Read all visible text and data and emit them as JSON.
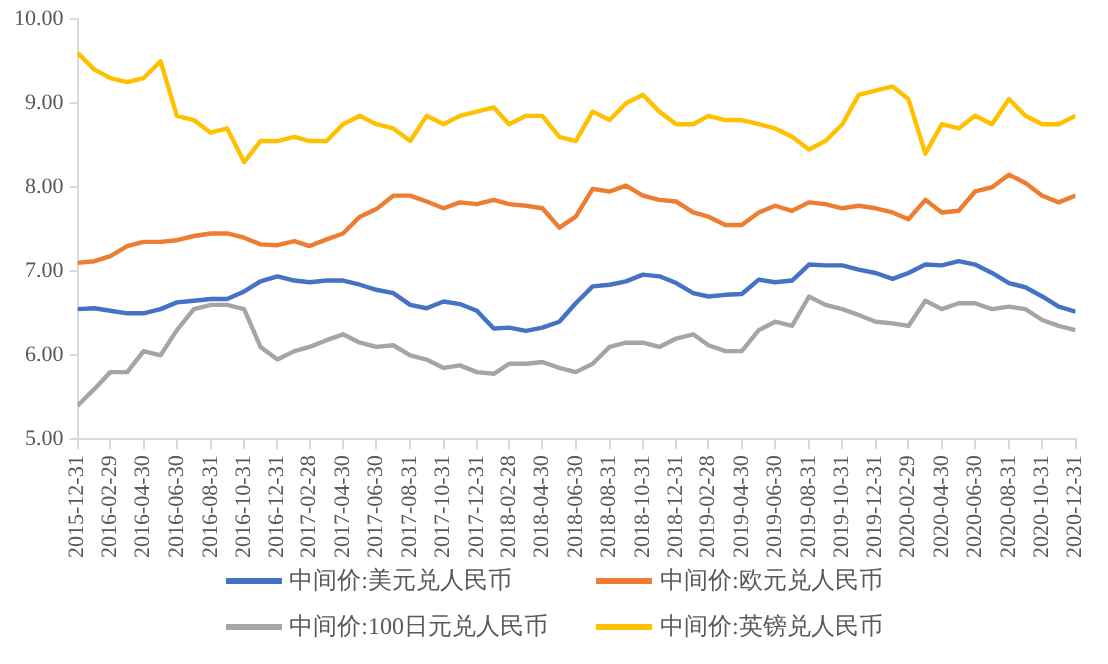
{
  "chart_data": {
    "type": "line",
    "x": [
      "2015-12-31",
      "2016-01-31",
      "2016-02-29",
      "2016-03-31",
      "2016-04-30",
      "2016-05-31",
      "2016-06-30",
      "2016-07-31",
      "2016-08-31",
      "2016-09-30",
      "2016-10-31",
      "2016-11-30",
      "2016-12-31",
      "2017-01-31",
      "2017-02-28",
      "2017-03-31",
      "2017-04-30",
      "2017-05-31",
      "2017-06-30",
      "2017-07-31",
      "2017-08-31",
      "2017-09-30",
      "2017-10-31",
      "2017-11-30",
      "2017-12-31",
      "2018-01-31",
      "2018-02-28",
      "2018-03-31",
      "2018-04-30",
      "2018-05-31",
      "2018-06-30",
      "2018-07-31",
      "2018-08-31",
      "2018-09-30",
      "2018-10-31",
      "2018-11-30",
      "2018-12-31",
      "2019-01-31",
      "2019-02-28",
      "2019-03-31",
      "2019-04-30",
      "2019-05-31",
      "2019-06-30",
      "2019-07-31",
      "2019-08-31",
      "2019-09-30",
      "2019-10-31",
      "2019-11-30",
      "2019-12-31",
      "2020-01-31",
      "2020-02-29",
      "2020-03-31",
      "2020-04-30",
      "2020-05-31",
      "2020-06-30",
      "2020-07-31",
      "2020-08-31",
      "2020-09-30",
      "2020-10-31",
      "2020-11-30",
      "2020-12-31"
    ],
    "series": [
      {
        "name": "中间价:美元兑人民币",
        "color": "#4472c4",
        "values": [
          6.55,
          6.56,
          6.53,
          6.5,
          6.5,
          6.55,
          6.63,
          6.65,
          6.67,
          6.67,
          6.76,
          6.88,
          6.94,
          6.89,
          6.87,
          6.89,
          6.89,
          6.84,
          6.78,
          6.74,
          6.6,
          6.56,
          6.64,
          6.61,
          6.53,
          6.32,
          6.33,
          6.29,
          6.33,
          6.4,
          6.62,
          6.82,
          6.84,
          6.88,
          6.96,
          6.94,
          6.86,
          6.74,
          6.7,
          6.72,
          6.73,
          6.9,
          6.87,
          6.89,
          7.08,
          7.07,
          7.07,
          7.02,
          6.98,
          6.91,
          6.98,
          7.08,
          7.07,
          7.12,
          7.08,
          6.98,
          6.86,
          6.81,
          6.7,
          6.58,
          6.52
        ]
      },
      {
        "name": "中间价:欧元兑人民币",
        "color": "#ed7d31",
        "values": [
          7.1,
          7.12,
          7.18,
          7.3,
          7.35,
          7.35,
          7.37,
          7.42,
          7.45,
          7.45,
          7.4,
          7.32,
          7.31,
          7.36,
          7.3,
          7.38,
          7.45,
          7.65,
          7.74,
          7.9,
          7.9,
          7.83,
          7.75,
          7.82,
          7.8,
          7.85,
          7.8,
          7.78,
          7.75,
          7.52,
          7.65,
          7.98,
          7.95,
          8.02,
          7.9,
          7.85,
          7.83,
          7.7,
          7.65,
          7.55,
          7.55,
          7.7,
          7.78,
          7.72,
          7.82,
          7.8,
          7.75,
          7.78,
          7.75,
          7.7,
          7.62,
          7.85,
          7.7,
          7.72,
          7.95,
          8.0,
          8.15,
          8.05,
          7.9,
          7.82,
          7.9
        ]
      },
      {
        "name": "中间价:100日元兑人民币",
        "color": "#a5a5a5",
        "values": [
          5.4,
          5.6,
          5.8,
          5.8,
          6.05,
          6.0,
          6.3,
          6.55,
          6.6,
          6.6,
          6.55,
          6.1,
          5.95,
          6.05,
          6.1,
          6.18,
          6.25,
          6.15,
          6.1,
          6.12,
          6.0,
          5.95,
          5.85,
          5.88,
          5.8,
          5.78,
          5.9,
          5.9,
          5.92,
          5.85,
          5.8,
          5.9,
          6.1,
          6.15,
          6.15,
          6.1,
          6.2,
          6.25,
          6.12,
          6.05,
          6.05,
          6.3,
          6.4,
          6.35,
          6.7,
          6.6,
          6.55,
          6.48,
          6.4,
          6.38,
          6.35,
          6.65,
          6.55,
          6.62,
          6.62,
          6.55,
          6.58,
          6.55,
          6.42,
          6.35,
          6.3
        ]
      },
      {
        "name": "中间价:英镑兑人民币",
        "color": "#ffc000",
        "values": [
          9.6,
          9.4,
          9.3,
          9.25,
          9.3,
          9.5,
          8.85,
          8.8,
          8.65,
          8.7,
          8.3,
          8.55,
          8.55,
          8.6,
          8.55,
          8.55,
          8.75,
          8.85,
          8.75,
          8.7,
          8.55,
          8.85,
          8.75,
          8.85,
          8.9,
          8.95,
          8.75,
          8.85,
          8.85,
          8.6,
          8.55,
          8.9,
          8.8,
          9.0,
          9.1,
          8.9,
          8.75,
          8.75,
          8.85,
          8.8,
          8.8,
          8.75,
          8.7,
          8.6,
          8.45,
          8.55,
          8.75,
          9.1,
          9.15,
          9.2,
          9.05,
          8.4,
          8.75,
          8.7,
          8.85,
          8.75,
          9.05,
          8.85,
          8.75,
          8.75,
          8.85
        ]
      }
    ],
    "xlim": [
      "2015-12-31",
      "2020-12-31"
    ],
    "xticks": [
      "2015-12-31",
      "2016-02-29",
      "2016-04-30",
      "2016-06-30",
      "2016-08-31",
      "2016-10-31",
      "2016-12-31",
      "2017-02-28",
      "2017-04-30",
      "2017-06-30",
      "2017-08-31",
      "2017-10-31",
      "2017-12-31",
      "2018-02-28",
      "2018-04-30",
      "2018-06-30",
      "2018-08-31",
      "2018-10-31",
      "2018-12-31",
      "2019-02-28",
      "2019-04-30",
      "2019-06-30",
      "2019-08-31",
      "2019-10-31",
      "2019-12-31",
      "2020-02-29",
      "2020-04-30",
      "2020-06-30",
      "2020-08-31",
      "2020-10-31",
      "2020-12-31"
    ],
    "ylim": [
      5,
      10
    ],
    "yticks": [
      {
        "value": 5,
        "label": "5.00"
      },
      {
        "value": 6,
        "label": "6.00"
      },
      {
        "value": 7,
        "label": "7.00"
      },
      {
        "value": 8,
        "label": "8.00"
      },
      {
        "value": 9,
        "label": "9.00"
      },
      {
        "value": 10,
        "label": "10.00"
      }
    ],
    "grid": false,
    "legend": "bottom",
    "marker": "none",
    "line_style": "solid"
  }
}
